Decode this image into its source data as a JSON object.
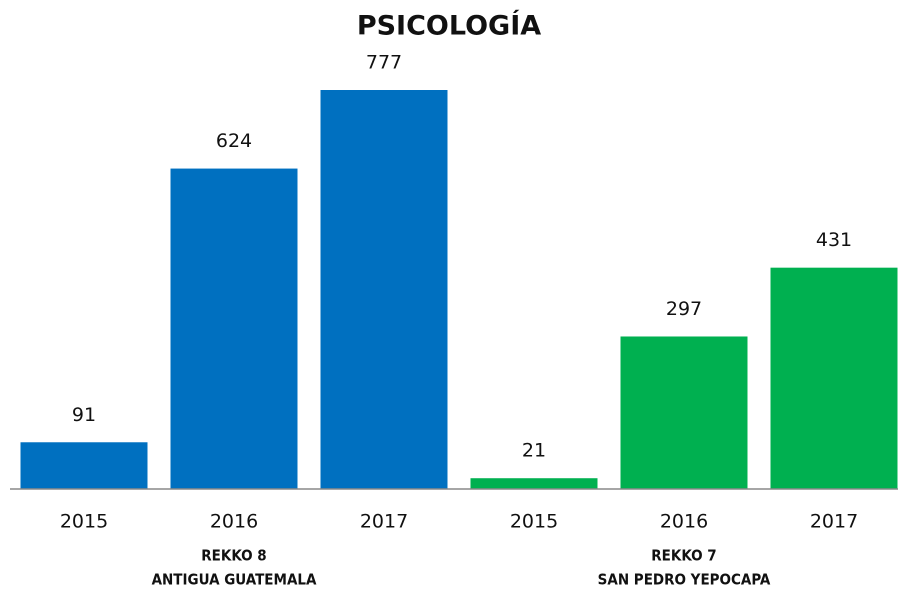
{
  "chart_data": {
    "type": "bar",
    "title": "PSICOLOGÍA",
    "groups": [
      {
        "label": [
          "REKKO 8",
          "ANTIGUA GUATEMALA"
        ],
        "color": "#0070c0",
        "categories": [
          "2015",
          "2016",
          "2017"
        ],
        "values": [
          91,
          624,
          777
        ]
      },
      {
        "label": [
          "REKKO 7",
          "SAN PEDRO YEPOCAPA"
        ],
        "color": "#00b050",
        "categories": [
          "2015",
          "2016",
          "2017"
        ],
        "values": [
          21,
          297,
          431
        ]
      }
    ]
  }
}
